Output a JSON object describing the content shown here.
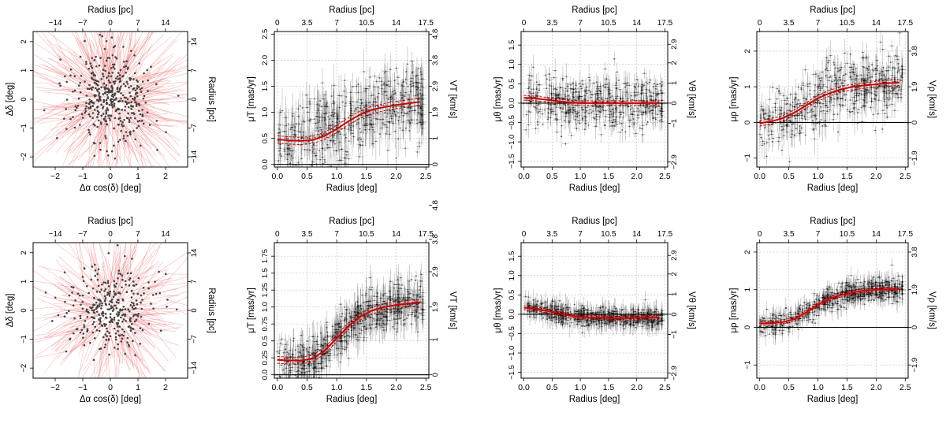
{
  "figure": {
    "colors": {
      "arrow": "#f08080",
      "point": "#444444",
      "model": "#cc0000",
      "band": "#ff9a9a",
      "grid": "#c8c8c8",
      "axis": "#000000"
    }
  },
  "chart_data": [
    {
      "type": "scatter",
      "variant": "vector-field",
      "row": 0,
      "col": 0,
      "xlabel": "Δα cos(δ) [deg]",
      "ylabel": "Δδ [deg]",
      "top_label": "Radius [pc]",
      "right_label": "Radius [pc]",
      "xlim": [
        -2.8,
        2.8
      ],
      "ylim": [
        -2.35,
        2.35
      ],
      "x_ticks": [
        -2,
        -1,
        0,
        1,
        2
      ],
      "x_tick_labels": [
        "−2",
        "−1",
        "0",
        "1",
        "2"
      ],
      "y_ticks": [
        -2,
        -1,
        0,
        1,
        2
      ],
      "y_tick_labels": [
        "−2",
        "−1",
        "0",
        "1",
        "2"
      ],
      "top_ticks": [
        -1.996,
        -1.002,
        0,
        0.998,
        1.996
      ],
      "top_tick_labels": [
        "−14",
        "−7",
        "0",
        "7",
        "14"
      ],
      "right_ticks": [
        -1.996,
        -0.998,
        0,
        0.998,
        1.996
      ],
      "right_tick_labels": [
        "−14",
        "−7",
        "0",
        "7",
        "14"
      ],
      "n_stars": 420,
      "spread_deg": 0.85,
      "arrow_scale": 1.4
    },
    {
      "type": "line",
      "row": 0,
      "col": 1,
      "xlabel": "Radius [deg]",
      "ylabel": "μT [mas/yr]",
      "top_label": "Radius [pc]",
      "right_label": "VT [km/s]",
      "xlim": [
        -0.05,
        2.55
      ],
      "ylim": [
        -0.05,
        2.55
      ],
      "x_ticks": [
        0,
        0.5,
        1,
        1.5,
        2,
        2.5
      ],
      "x_tick_labels": [
        "0.0",
        "0.5",
        "1.0",
        "1.5",
        "2.0",
        "2.5"
      ],
      "y_ticks": [
        0,
        0.5,
        1,
        1.5,
        2,
        2.5
      ],
      "y_tick_labels": [
        "0.0",
        "0.5",
        "1.0",
        "1.5",
        "2.0",
        "2.5"
      ],
      "top_ticks": [
        0,
        0.5,
        1,
        1.5,
        2,
        2.5
      ],
      "top_tick_labels": [
        "0",
        "3.5",
        "7",
        "10.5",
        "14",
        "17.5"
      ],
      "right_ticks": [
        0,
        0.5,
        1,
        1.5,
        2,
        2.5
      ],
      "right_tick_labels": [
        "0",
        "1",
        "1.9",
        "2.9",
        "3.8",
        "4.8"
      ],
      "hline": 0,
      "model": {
        "x": [
          0,
          0.2,
          0.4,
          0.6,
          0.8,
          1.0,
          1.2,
          1.4,
          1.6,
          1.8,
          2.0,
          2.2,
          2.4
        ],
        "y": [
          0.48,
          0.46,
          0.45,
          0.47,
          0.55,
          0.68,
          0.83,
          0.96,
          1.05,
          1.1,
          1.14,
          1.17,
          1.2
        ],
        "band": 0.07
      },
      "points": {
        "n": 560,
        "scatter": 0.38,
        "err_low": 0.05,
        "err_high": 0.45
      }
    },
    {
      "type": "line",
      "row": 0,
      "col": 2,
      "xlabel": "Radius [deg]",
      "ylabel": "μθ [mas/yr]",
      "top_label": "Radius [pc]",
      "right_label": "Vθ [km/s]",
      "xlim": [
        -0.05,
        2.55
      ],
      "ylim": [
        -1.65,
        1.85
      ],
      "x_ticks": [
        0,
        0.5,
        1,
        1.5,
        2,
        2.5
      ],
      "x_tick_labels": [
        "0.0",
        "0.5",
        "1.0",
        "1.5",
        "2.0",
        "2.5"
      ],
      "y_ticks": [
        -1.5,
        -1,
        -0.5,
        0,
        0.5,
        1,
        1.5
      ],
      "y_tick_labels": [
        "−1.5",
        "−1.0",
        "−0.5",
        "0.0",
        "0.5",
        "1.0",
        "1.5"
      ],
      "top_ticks": [
        0,
        0.5,
        1,
        1.5,
        2,
        2.5
      ],
      "top_tick_labels": [
        "0",
        "3.5",
        "7",
        "10.5",
        "14",
        "17.5"
      ],
      "right_ticks": [
        -1.52,
        -0.52,
        0,
        0.52,
        1.04,
        1.52
      ],
      "right_tick_labels": [
        "−2.9",
        "−1",
        "0",
        "1",
        "2",
        "2.9"
      ],
      "hline": 0,
      "model": {
        "x": [
          0,
          0.2,
          0.4,
          0.6,
          0.8,
          1.0,
          1.2,
          1.4,
          1.6,
          1.8,
          2.0,
          2.2,
          2.4
        ],
        "y": [
          0.14,
          0.12,
          0.09,
          0.05,
          0.02,
          0.0,
          0.0,
          0.0,
          0.0,
          0.0,
          0.0,
          0.0,
          0.0
        ],
        "band": 0.06
      },
      "points": {
        "n": 560,
        "scatter": 0.32,
        "err_low": 0.05,
        "err_high": 0.35
      }
    },
    {
      "type": "line",
      "row": 0,
      "col": 3,
      "xlabel": "Radius [deg]",
      "ylabel": "μρ [mas/yr]",
      "top_label": "Radius [pc]",
      "right_label": "Vρ [km/s]",
      "xlim": [
        -0.05,
        2.55
      ],
      "ylim": [
        -1.25,
        2.55
      ],
      "x_ticks": [
        0,
        0.5,
        1,
        1.5,
        2,
        2.5
      ],
      "x_tick_labels": [
        "0.0",
        "0.5",
        "1.0",
        "1.5",
        "2.0",
        "2.5"
      ],
      "y_ticks": [
        -1,
        0,
        1,
        2
      ],
      "y_tick_labels": [
        "−1",
        "0",
        "1",
        "2"
      ],
      "top_ticks": [
        0,
        0.5,
        1,
        1.5,
        2,
        2.5
      ],
      "top_tick_labels": [
        "0",
        "3.5",
        "7",
        "10.5",
        "14",
        "17.5"
      ],
      "right_ticks": [
        -1,
        0,
        1,
        2
      ],
      "right_tick_labels": [
        "−1.9",
        "0",
        "1.9",
        "3.8"
      ],
      "hline": 0,
      "model": {
        "x": [
          0,
          0.2,
          0.4,
          0.6,
          0.8,
          1.0,
          1.2,
          1.4,
          1.6,
          1.8,
          2.0,
          2.2,
          2.4
        ],
        "y": [
          -0.02,
          0.03,
          0.12,
          0.28,
          0.48,
          0.68,
          0.82,
          0.93,
          1.0,
          1.04,
          1.07,
          1.1,
          1.12
        ],
        "band": 0.08
      },
      "points": {
        "n": 560,
        "scatter": 0.42,
        "err_low": 0.05,
        "err_high": 0.45
      }
    },
    {
      "type": "scatter",
      "variant": "vector-field",
      "row": 1,
      "col": 0,
      "xlabel": "Δα cos(δ) [deg]",
      "ylabel": "Δδ [deg]",
      "top_label": "Radius [pc]",
      "right_label": "Radius [pc]",
      "xlim": [
        -2.8,
        2.8
      ],
      "ylim": [
        -2.35,
        2.35
      ],
      "x_ticks": [
        -2,
        -1,
        0,
        1,
        2
      ],
      "x_tick_labels": [
        "−2",
        "−1",
        "0",
        "1",
        "2"
      ],
      "y_ticks": [
        -2,
        -1,
        0,
        1,
        2
      ],
      "y_tick_labels": [
        "−2",
        "−1",
        "0",
        "1",
        "2"
      ],
      "top_ticks": [
        -1.996,
        -1.002,
        0,
        0.998,
        1.996
      ],
      "top_tick_labels": [
        "−14",
        "−7",
        "0",
        "7",
        "14"
      ],
      "right_ticks": [
        -1.996,
        -0.998,
        0,
        0.998,
        1.996
      ],
      "right_tick_labels": [
        "−14",
        "−7",
        "0",
        "7",
        "14"
      ],
      "n_stars": 340,
      "spread_deg": 0.85,
      "arrow_scale": 1.2
    },
    {
      "type": "line",
      "row": 1,
      "col": 1,
      "xlabel": "Radius [deg]",
      "ylabel": "μT [mas/yr]",
      "top_label": "Radius [pc]",
      "right_label": "VT [km/s]",
      "xlim": [
        -0.05,
        2.55
      ],
      "ylim": [
        -0.05,
        1.95
      ],
      "x_ticks": [
        0,
        0.5,
        1,
        1.5,
        2,
        2.5
      ],
      "x_tick_labels": [
        "0.0",
        "0.5",
        "1.0",
        "1.5",
        "2.0",
        "2.5"
      ],
      "y_ticks": [
        0,
        0.25,
        0.5,
        0.75,
        1,
        1.25,
        1.5,
        1.75
      ],
      "y_tick_labels": [
        "0.0",
        "0.25",
        "0.5",
        "0.75",
        "1.0",
        "1.25",
        "1.5",
        "1.75"
      ],
      "top_ticks": [
        0,
        0.5,
        1,
        1.5,
        2,
        2.5
      ],
      "top_tick_labels": [
        "0",
        "3.5",
        "7",
        "10.5",
        "14",
        "17.5"
      ],
      "right_ticks": [
        0,
        0.52,
        1.0,
        1.52,
        2.0,
        2.5
      ],
      "right_tick_labels": [
        "0",
        "1",
        "1.9",
        "2.9",
        "3.8",
        "4.8"
      ],
      "hline": 0,
      "model": {
        "x": [
          0,
          0.2,
          0.4,
          0.6,
          0.8,
          1.0,
          1.2,
          1.4,
          1.6,
          1.8,
          2.0,
          2.2,
          2.4
        ],
        "y": [
          0.22,
          0.21,
          0.21,
          0.24,
          0.36,
          0.54,
          0.72,
          0.86,
          0.95,
          1.0,
          1.03,
          1.05,
          1.06
        ],
        "band": 0.05
      },
      "points": {
        "n": 620,
        "scatter": 0.16,
        "err_low": 0.05,
        "err_high": 0.3
      }
    },
    {
      "type": "line",
      "row": 1,
      "col": 2,
      "xlabel": "Radius [deg]",
      "ylabel": "μθ [mas/yr]",
      "top_label": "Radius [pc]",
      "right_label": "Vθ [km/s]",
      "xlim": [
        -0.05,
        2.55
      ],
      "ylim": [
        -1.65,
        1.85
      ],
      "x_ticks": [
        0,
        0.5,
        1,
        1.5,
        2,
        2.5
      ],
      "x_tick_labels": [
        "0.0",
        "0.5",
        "1.0",
        "1.5",
        "2.0",
        "2.5"
      ],
      "y_ticks": [
        -1.5,
        -1,
        -0.5,
        0,
        0.5,
        1,
        1.5
      ],
      "y_tick_labels": [
        "−1.5",
        "−1.0",
        "−0.5",
        "0.0",
        "0.5",
        "1.0",
        "1.5"
      ],
      "top_ticks": [
        0,
        0.5,
        1,
        1.5,
        2,
        2.5
      ],
      "top_tick_labels": [
        "0",
        "3.5",
        "7",
        "10.5",
        "14",
        "17.5"
      ],
      "right_ticks": [
        -1.52,
        -0.52,
        0,
        0.52,
        1.04,
        1.52
      ],
      "right_tick_labels": [
        "−2.9",
        "−1",
        "0",
        "1",
        "2",
        "2.9"
      ],
      "hline": 0,
      "model": {
        "x": [
          0,
          0.2,
          0.4,
          0.6,
          0.8,
          1.0,
          1.2,
          1.4,
          1.6,
          1.8,
          2.0,
          2.2,
          2.4
        ],
        "y": [
          0.17,
          0.14,
          0.09,
          0.03,
          -0.03,
          -0.07,
          -0.08,
          -0.09,
          -0.1,
          -0.1,
          -0.09,
          -0.08,
          -0.08
        ],
        "band": 0.05
      },
      "points": {
        "n": 620,
        "scatter": 0.12,
        "err_low": 0.05,
        "err_high": 0.3
      }
    },
    {
      "type": "line",
      "row": 1,
      "col": 3,
      "xlabel": "Radius [deg]",
      "ylabel": "μρ [mas/yr]",
      "top_label": "Radius [pc]",
      "right_label": "Vρ [km/s]",
      "xlim": [
        -0.05,
        2.55
      ],
      "ylim": [
        -1.35,
        2.25
      ],
      "x_ticks": [
        0,
        0.5,
        1,
        1.5,
        2,
        2.5
      ],
      "x_tick_labels": [
        "0.0",
        "0.5",
        "1.0",
        "1.5",
        "2.0",
        "2.5"
      ],
      "y_ticks": [
        -1,
        0,
        1,
        2
      ],
      "y_tick_labels": [
        "−1",
        "0",
        "1",
        "2"
      ],
      "top_ticks": [
        0,
        0.5,
        1,
        1.5,
        2,
        2.5
      ],
      "top_tick_labels": [
        "0",
        "3.5",
        "7",
        "10.5",
        "14",
        "17.5"
      ],
      "right_ticks": [
        -1,
        0,
        1,
        2
      ],
      "right_tick_labels": [
        "−1.9",
        "0",
        "1.9",
        "3.8"
      ],
      "hline": 0,
      "model": {
        "x": [
          0,
          0.2,
          0.4,
          0.6,
          0.8,
          1.0,
          1.2,
          1.4,
          1.6,
          1.8,
          2.0,
          2.2,
          2.4
        ],
        "y": [
          0.1,
          0.11,
          0.14,
          0.22,
          0.4,
          0.6,
          0.76,
          0.86,
          0.93,
          0.97,
          1.0,
          1.01,
          1.02
        ],
        "band": 0.05
      },
      "points": {
        "n": 620,
        "scatter": 0.15,
        "err_low": 0.05,
        "err_high": 0.3
      }
    }
  ]
}
